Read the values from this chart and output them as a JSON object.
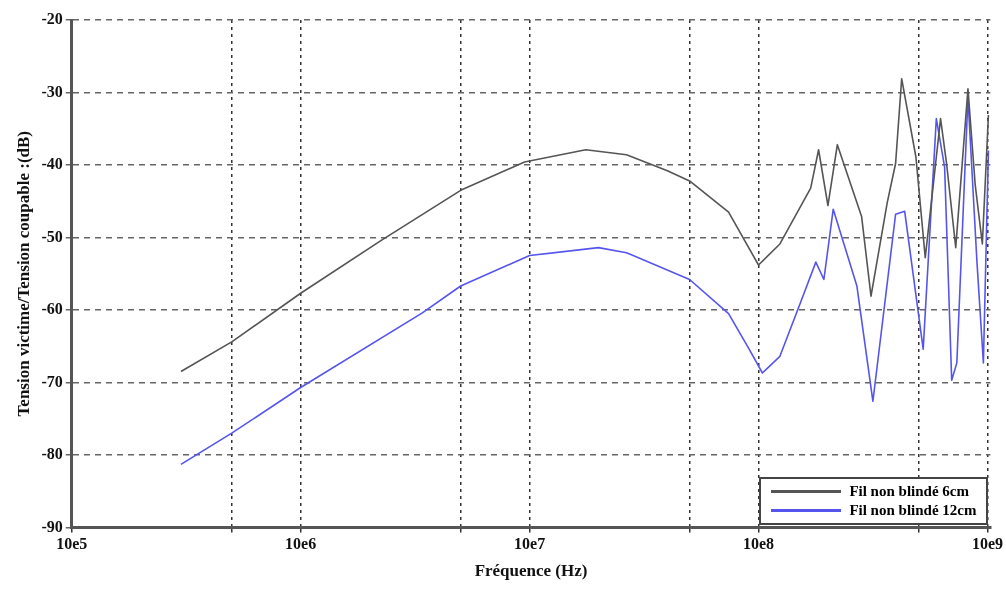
{
  "chart_data": {
    "type": "line",
    "xlabel": "Fréquence (Hz)",
    "ylabel": "Tension victime/Tension coupable :(dB)",
    "log": "x",
    "xlim": [
      1000000,
      10300000000
    ],
    "xticks": [
      {
        "value": 1000000,
        "label": "10e5"
      },
      {
        "value": 5000000,
        "label": null
      },
      {
        "value": 10000000,
        "label": "10e6"
      },
      {
        "value": 50000000,
        "label": null
      },
      {
        "value": 100000000,
        "label": "10e7"
      },
      {
        "value": 500000000,
        "label": null
      },
      {
        "value": 1000000000,
        "label": "10e8"
      },
      {
        "value": 5000000000,
        "label": null
      },
      {
        "value": 10000000000,
        "label": "10e9"
      }
    ],
    "ylim": [
      -90,
      -20
    ],
    "yticks": [
      -90,
      -80,
      -70,
      -60,
      -50,
      -40,
      -30,
      -20
    ],
    "grid": true,
    "legend": "bottom right",
    "marker": "none",
    "line_style": "solid",
    "series": [
      {
        "name": "Fil non blindé 6cm",
        "color": "#555555",
        "x": [
          3000000,
          5000000,
          10000000,
          22500000,
          50000000,
          95000000,
          176000000,
          265000000,
          400000000,
          500000000,
          740000000,
          1000000000,
          1240000000,
          1690000000,
          1830000000,
          2010000000,
          2210000000,
          2820000000,
          3100000000,
          3650000000,
          3970000000,
          4220000000,
          4870000000,
          5350000000,
          6240000000,
          6630000000,
          7270000000,
          8220000000,
          8840000000,
          9500000000,
          10100000000
        ],
        "values": [
          -68.5,
          -64.4,
          -57.7,
          -50.4,
          -43.5,
          -39.6,
          -37.9,
          -38.6,
          -40.8,
          -42.2,
          -46.5,
          -53.8,
          -50.9,
          -43.2,
          -37.9,
          -45.6,
          -37.2,
          -47.1,
          -58.1,
          -45.2,
          -39.8,
          -28.1,
          -38.9,
          -52.8,
          -33.6,
          -39.8,
          -51.4,
          -29.5,
          -42.7,
          -50.9,
          -33.1
        ]
      },
      {
        "name": "Fil non blindé 12cm",
        "color": "#5555ee",
        "x": [
          3000000,
          5000000,
          10000000,
          34000000,
          50000000,
          100000000,
          200000000,
          265000000,
          500000000,
          740000000,
          910000000,
          1040000000,
          1240000000,
          1520000000,
          1780000000,
          1930000000,
          2120000000,
          2690000000,
          3160000000,
          3970000000,
          4350000000,
          5240000000,
          5980000000,
          6500000000,
          6980000000,
          7350000000,
          8220000000,
          9000000000,
          9600000000,
          10100000000
        ],
        "values": [
          -81.3,
          -77,
          -70.7,
          -60.4,
          -56.7,
          -52.5,
          -51.4,
          -52.1,
          -55.8,
          -60.5,
          -65.4,
          -68.7,
          -66.4,
          -59.1,
          -53.4,
          -55.8,
          -46.1,
          -56.7,
          -72.6,
          -46.8,
          -46.4,
          -65.4,
          -33.6,
          -40.3,
          -69.7,
          -67.3,
          -30.7,
          -53.4,
          -67.3,
          -38
        ]
      }
    ]
  }
}
